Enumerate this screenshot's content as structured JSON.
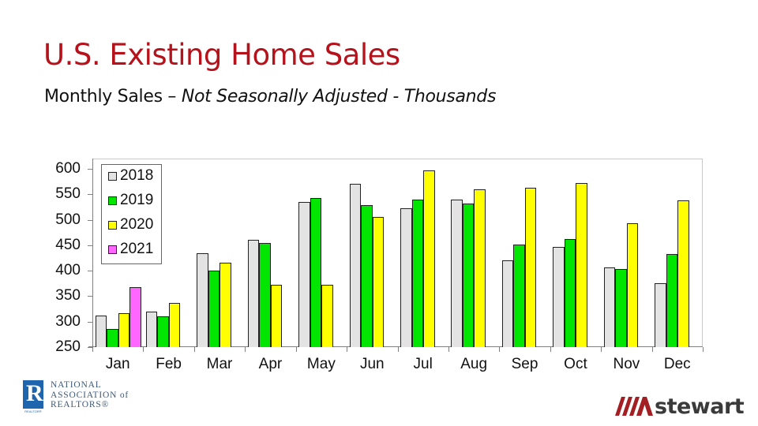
{
  "header": {
    "title": "U.S. Existing Home Sales",
    "subtitle_plain": "Monthly Sales – ",
    "subtitle_italic": "Not Seasonally Adjusted - Thousands"
  },
  "logos": {
    "left": {
      "icon": "realtor-r-icon",
      "letter": "R",
      "badge": "REALTOR®",
      "lines": [
        "NATIONAL",
        "ASSOCIATION of",
        "REALTORS®"
      ]
    },
    "right": {
      "icon": "stewart-stripes-icon",
      "word": "stewart",
      "color": "#a31f24"
    }
  },
  "colors": {
    "title": "#b5121b",
    "2018": "#e3e3e3",
    "2019": "#00e600",
    "2020": "#ffff00",
    "2021": "#ff66ff"
  },
  "chart_data": {
    "type": "bar",
    "title": "U.S. Existing Home Sales",
    "subtitle": "Monthly Sales – Not Seasonally Adjusted - Thousands",
    "xlabel": "",
    "ylabel": "",
    "ylim": [
      250,
      600
    ],
    "yticks": [
      250,
      300,
      350,
      400,
      450,
      500,
      550,
      600
    ],
    "grid": false,
    "legend_position": "upper-left-inside",
    "categories": [
      "Jan",
      "Feb",
      "Mar",
      "Apr",
      "May",
      "Jun",
      "Jul",
      "Aug",
      "Sep",
      "Oct",
      "Nov",
      "Dec"
    ],
    "series": [
      {
        "name": "2018",
        "color": "#e3e3e3",
        "values": [
          312,
          319,
          434,
          460,
          535,
          571,
          523,
          539,
          421,
          446,
          406,
          376
        ]
      },
      {
        "name": "2019",
        "color": "#00e600",
        "values": [
          285,
          311,
          400,
          455,
          542,
          528,
          540,
          532,
          451,
          462,
          404,
          433
        ]
      },
      {
        "name": "2020",
        "color": "#ffff00",
        "values": [
          316,
          336,
          416,
          372,
          372,
          506,
          597,
          560,
          563,
          572,
          493,
          538
        ]
      },
      {
        "name": "2021",
        "color": "#ff66ff",
        "values": [
          367,
          null,
          null,
          null,
          null,
          null,
          null,
          null,
          null,
          null,
          null,
          null
        ]
      }
    ]
  }
}
